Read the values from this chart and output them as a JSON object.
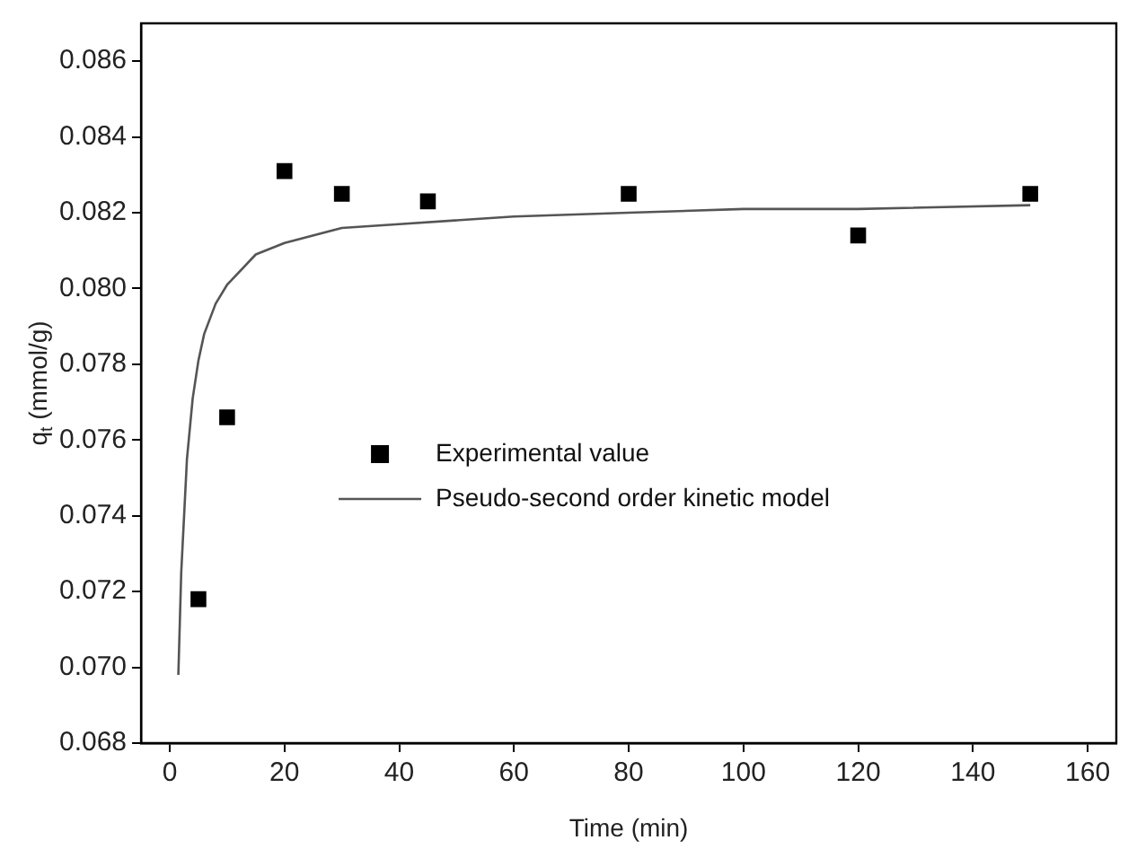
{
  "chart_data": {
    "type": "scatter",
    "xlabel": "Time (min)",
    "ylabel": "q$_{t}$ (mmol/g)",
    "xlim": [
      -5,
      165
    ],
    "xticks": [
      0,
      20,
      40,
      60,
      80,
      100,
      120,
      140,
      160
    ],
    "ylim": [
      0.068,
      0.087
    ],
    "yticks": [
      0.068,
      {
        "value": 0.07,
        "label": "0.070"
      },
      0.072,
      0.074,
      0.076,
      0.078,
      {
        "value": 0.08,
        "label": "0.080"
      },
      0.082,
      0.084,
      0.086
    ],
    "grid": false,
    "legend": "center",
    "series": [
      {
        "name": "Experimental value",
        "marker": "square",
        "color": "#000000",
        "x": [
          5,
          10,
          20,
          30,
          45,
          80,
          120,
          150
        ],
        "values": [
          0.0718,
          0.0766,
          0.0831,
          0.0825,
          0.0823,
          0.0825,
          0.0814,
          0.0825
        ]
      },
      {
        "name": "Pseudo-second order kinetic model",
        "type": "line",
        "marker": "none",
        "line_style": "solid",
        "color": "#555555",
        "x": [
          1.5,
          2,
          3,
          4,
          5,
          6,
          8,
          10,
          15,
          20,
          30,
          40,
          60,
          80,
          100,
          120,
          150
        ],
        "values": [
          0.0698,
          0.0725,
          0.0755,
          0.0771,
          0.0781,
          0.0788,
          0.0796,
          0.0801,
          0.0809,
          0.0812,
          0.0816,
          0.0817,
          0.0819,
          0.082,
          0.0821,
          0.0821,
          0.0822
        ]
      }
    ]
  }
}
